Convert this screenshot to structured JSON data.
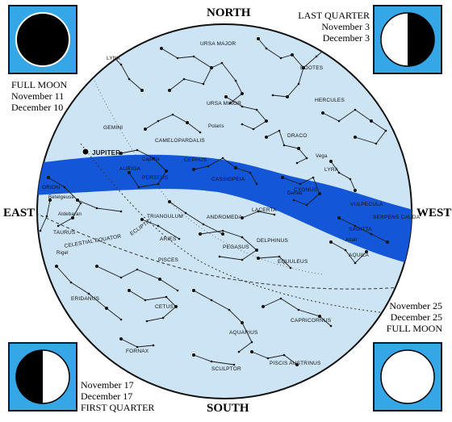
{
  "directions": {
    "north": "NORTH",
    "south": "SOUTH",
    "east": "EAST",
    "west": "WEST"
  },
  "moon_phases": {
    "full_moon_left": {
      "title": "FULL MOON",
      "dates": [
        "November 11",
        "December 10"
      ],
      "icon": "full-moon-icon"
    },
    "last_quarter": {
      "title": "LAST QUARTER",
      "dates": [
        "November 3",
        "December 3"
      ],
      "icon": "last-quarter-moon-icon"
    },
    "first_quarter": {
      "title": "FIRST QUARTER",
      "dates": [
        "November 17",
        "December 17"
      ],
      "icon": "first-quarter-moon-icon"
    },
    "full_moon_right": {
      "title": "FULL MOON",
      "dates": [
        "November 25",
        "December 25"
      ],
      "icon": "new-moon-icon"
    }
  },
  "labels": {
    "jupiter": "JUPITER",
    "ecliptic": "ECLIPTIC",
    "celestial_equator": "CELESTIAL EQUATOR",
    "constellations": [
      "URSA MAJOR",
      "LYNX",
      "GEMINI",
      "BOOTES",
      "HERCULES",
      "URSA MINOR",
      "Polaris",
      "DRACO",
      "Vega",
      "LYRA",
      "CAMELOPARDALIS",
      "Capella",
      "AURIGA",
      "CEPHUS",
      "PERSEUS",
      "CASSIOPEIA",
      "Deneb",
      "CYGNUS",
      "ORION",
      "Betelgeuse",
      "VULPECULA",
      "SERPENS CAUDA",
      "SAGITTA",
      "LACERTA",
      "Altair",
      "TRIANGULUM",
      "ANDROMEDA",
      "Aldebaran",
      "TAURUS",
      "ARIES",
      "DELPHINUS",
      "PEGASUS",
      "AQUILA",
      "EQUULEUS",
      "Rigel",
      "PISCES",
      "ERIDANUS",
      "CETUS",
      "AQUARIUS",
      "CAPRICORNUS",
      "FORNAX",
      "SCULPTOR",
      "PISCIS AUSTRINUS"
    ]
  },
  "colors": {
    "sky": "#cde4f4",
    "milky_way": "#1456d8",
    "moon_box": "#35a7e6",
    "ink": "#000000"
  }
}
